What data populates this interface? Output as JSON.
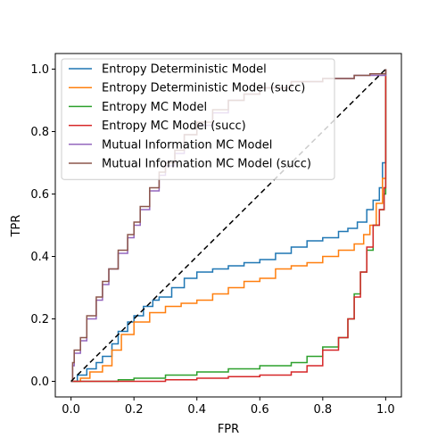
{
  "chart_data": {
    "type": "line",
    "xlabel": "FPR",
    "ylabel": "TPR",
    "xlim": [
      -0.05,
      1.05
    ],
    "ylim": [
      -0.05,
      1.05
    ],
    "x_ticks": [
      "0.0",
      "0.2",
      "0.4",
      "0.6",
      "0.8",
      "1.0"
    ],
    "y_ticks": [
      "0.0",
      "0.2",
      "0.4",
      "0.6",
      "0.8",
      "1.0"
    ],
    "grid": false,
    "legend_position": "top-left",
    "diagonal": {
      "style": "dashed",
      "color": "#000000",
      "points": [
        [
          0,
          0
        ],
        [
          1,
          1
        ]
      ]
    },
    "series": [
      {
        "name": "Entropy Deterministic Model",
        "color": "#1f77b4",
        "points": [
          [
            0,
            0
          ],
          [
            0.02,
            0.02
          ],
          [
            0.05,
            0.04
          ],
          [
            0.08,
            0.06
          ],
          [
            0.1,
            0.08
          ],
          [
            0.13,
            0.12
          ],
          [
            0.15,
            0.16
          ],
          [
            0.18,
            0.19
          ],
          [
            0.2,
            0.21
          ],
          [
            0.23,
            0.24
          ],
          [
            0.26,
            0.26
          ],
          [
            0.28,
            0.27
          ],
          [
            0.32,
            0.3
          ],
          [
            0.36,
            0.33
          ],
          [
            0.4,
            0.35
          ],
          [
            0.45,
            0.36
          ],
          [
            0.5,
            0.37
          ],
          [
            0.55,
            0.38
          ],
          [
            0.6,
            0.39
          ],
          [
            0.65,
            0.41
          ],
          [
            0.7,
            0.43
          ],
          [
            0.75,
            0.45
          ],
          [
            0.8,
            0.46
          ],
          [
            0.85,
            0.48
          ],
          [
            0.88,
            0.49
          ],
          [
            0.91,
            0.51
          ],
          [
            0.94,
            0.55
          ],
          [
            0.96,
            0.58
          ],
          [
            0.98,
            0.62
          ],
          [
            0.99,
            0.7
          ],
          [
            1.0,
            1.0
          ]
        ]
      },
      {
        "name": "Entropy Deterministic Model (succ)",
        "color": "#ff7f0e",
        "points": [
          [
            0,
            0
          ],
          [
            0.03,
            0.01
          ],
          [
            0.06,
            0.03
          ],
          [
            0.1,
            0.05
          ],
          [
            0.13,
            0.1
          ],
          [
            0.16,
            0.15
          ],
          [
            0.2,
            0.19
          ],
          [
            0.25,
            0.22
          ],
          [
            0.3,
            0.24
          ],
          [
            0.35,
            0.25
          ],
          [
            0.4,
            0.26
          ],
          [
            0.45,
            0.28
          ],
          [
            0.5,
            0.3
          ],
          [
            0.55,
            0.32
          ],
          [
            0.6,
            0.33
          ],
          [
            0.65,
            0.36
          ],
          [
            0.7,
            0.37
          ],
          [
            0.75,
            0.38
          ],
          [
            0.8,
            0.4
          ],
          [
            0.85,
            0.42
          ],
          [
            0.9,
            0.44
          ],
          [
            0.93,
            0.47
          ],
          [
            0.95,
            0.5
          ],
          [
            0.97,
            0.57
          ],
          [
            0.99,
            0.65
          ],
          [
            1.0,
            1.0
          ]
        ]
      },
      {
        "name": "Entropy MC Model",
        "color": "#2ca02c",
        "points": [
          [
            0,
            0
          ],
          [
            0.15,
            0.005
          ],
          [
            0.2,
            0.01
          ],
          [
            0.3,
            0.02
          ],
          [
            0.4,
            0.03
          ],
          [
            0.5,
            0.04
          ],
          [
            0.6,
            0.05
          ],
          [
            0.7,
            0.06
          ],
          [
            0.75,
            0.08
          ],
          [
            0.8,
            0.11
          ],
          [
            0.85,
            0.14
          ],
          [
            0.88,
            0.2
          ],
          [
            0.9,
            0.28
          ],
          [
            0.92,
            0.35
          ],
          [
            0.94,
            0.42
          ],
          [
            0.96,
            0.5
          ],
          [
            0.98,
            0.55
          ],
          [
            0.995,
            0.6
          ],
          [
            1.0,
            0.77
          ],
          [
            1.0,
            1.0
          ]
        ]
      },
      {
        "name": "Entropy MC Model (succ)",
        "color": "#d62728",
        "points": [
          [
            0,
            0
          ],
          [
            0.15,
            0
          ],
          [
            0.2,
            0
          ],
          [
            0.3,
            0.005
          ],
          [
            0.4,
            0.01
          ],
          [
            0.5,
            0.015
          ],
          [
            0.6,
            0.02
          ],
          [
            0.7,
            0.03
          ],
          [
            0.75,
            0.05
          ],
          [
            0.8,
            0.1
          ],
          [
            0.85,
            0.14
          ],
          [
            0.88,
            0.2
          ],
          [
            0.9,
            0.27
          ],
          [
            0.92,
            0.35
          ],
          [
            0.94,
            0.43
          ],
          [
            0.96,
            0.5
          ],
          [
            0.98,
            0.55
          ],
          [
            0.995,
            0.62
          ],
          [
            1.0,
            0.85
          ],
          [
            1.0,
            1.0
          ]
        ]
      },
      {
        "name": "Mutual Information MC Model",
        "color": "#9467bd",
        "points": [
          [
            0,
            0
          ],
          [
            0.005,
            0.05
          ],
          [
            0.01,
            0.09
          ],
          [
            0.03,
            0.13
          ],
          [
            0.05,
            0.2
          ],
          [
            0.08,
            0.26
          ],
          [
            0.1,
            0.31
          ],
          [
            0.12,
            0.36
          ],
          [
            0.15,
            0.41
          ],
          [
            0.18,
            0.46
          ],
          [
            0.2,
            0.5
          ],
          [
            0.22,
            0.55
          ],
          [
            0.25,
            0.61
          ],
          [
            0.28,
            0.66
          ],
          [
            0.3,
            0.69
          ],
          [
            0.33,
            0.73
          ],
          [
            0.36,
            0.79
          ],
          [
            0.4,
            0.82
          ],
          [
            0.45,
            0.86
          ],
          [
            0.5,
            0.9
          ],
          [
            0.55,
            0.92
          ],
          [
            0.6,
            0.94
          ],
          [
            0.7,
            0.96
          ],
          [
            0.8,
            0.97
          ],
          [
            0.9,
            0.98
          ],
          [
            0.95,
            0.98
          ],
          [
            1.0,
            1.0
          ]
        ]
      },
      {
        "name": "Mutual Information MC Model (succ)",
        "color": "#8c564b",
        "points": [
          [
            0,
            0
          ],
          [
            0.005,
            0.06
          ],
          [
            0.01,
            0.1
          ],
          [
            0.03,
            0.14
          ],
          [
            0.05,
            0.21
          ],
          [
            0.08,
            0.27
          ],
          [
            0.1,
            0.32
          ],
          [
            0.12,
            0.36
          ],
          [
            0.15,
            0.42
          ],
          [
            0.18,
            0.47
          ],
          [
            0.2,
            0.51
          ],
          [
            0.22,
            0.56
          ],
          [
            0.25,
            0.62
          ],
          [
            0.28,
            0.67
          ],
          [
            0.3,
            0.7
          ],
          [
            0.33,
            0.74
          ],
          [
            0.36,
            0.79
          ],
          [
            0.4,
            0.83
          ],
          [
            0.45,
            0.87
          ],
          [
            0.5,
            0.9
          ],
          [
            0.55,
            0.92
          ],
          [
            0.6,
            0.94
          ],
          [
            0.7,
            0.96
          ],
          [
            0.8,
            0.97
          ],
          [
            0.9,
            0.98
          ],
          [
            0.95,
            0.985
          ],
          [
            1.0,
            1.0
          ]
        ]
      }
    ]
  }
}
